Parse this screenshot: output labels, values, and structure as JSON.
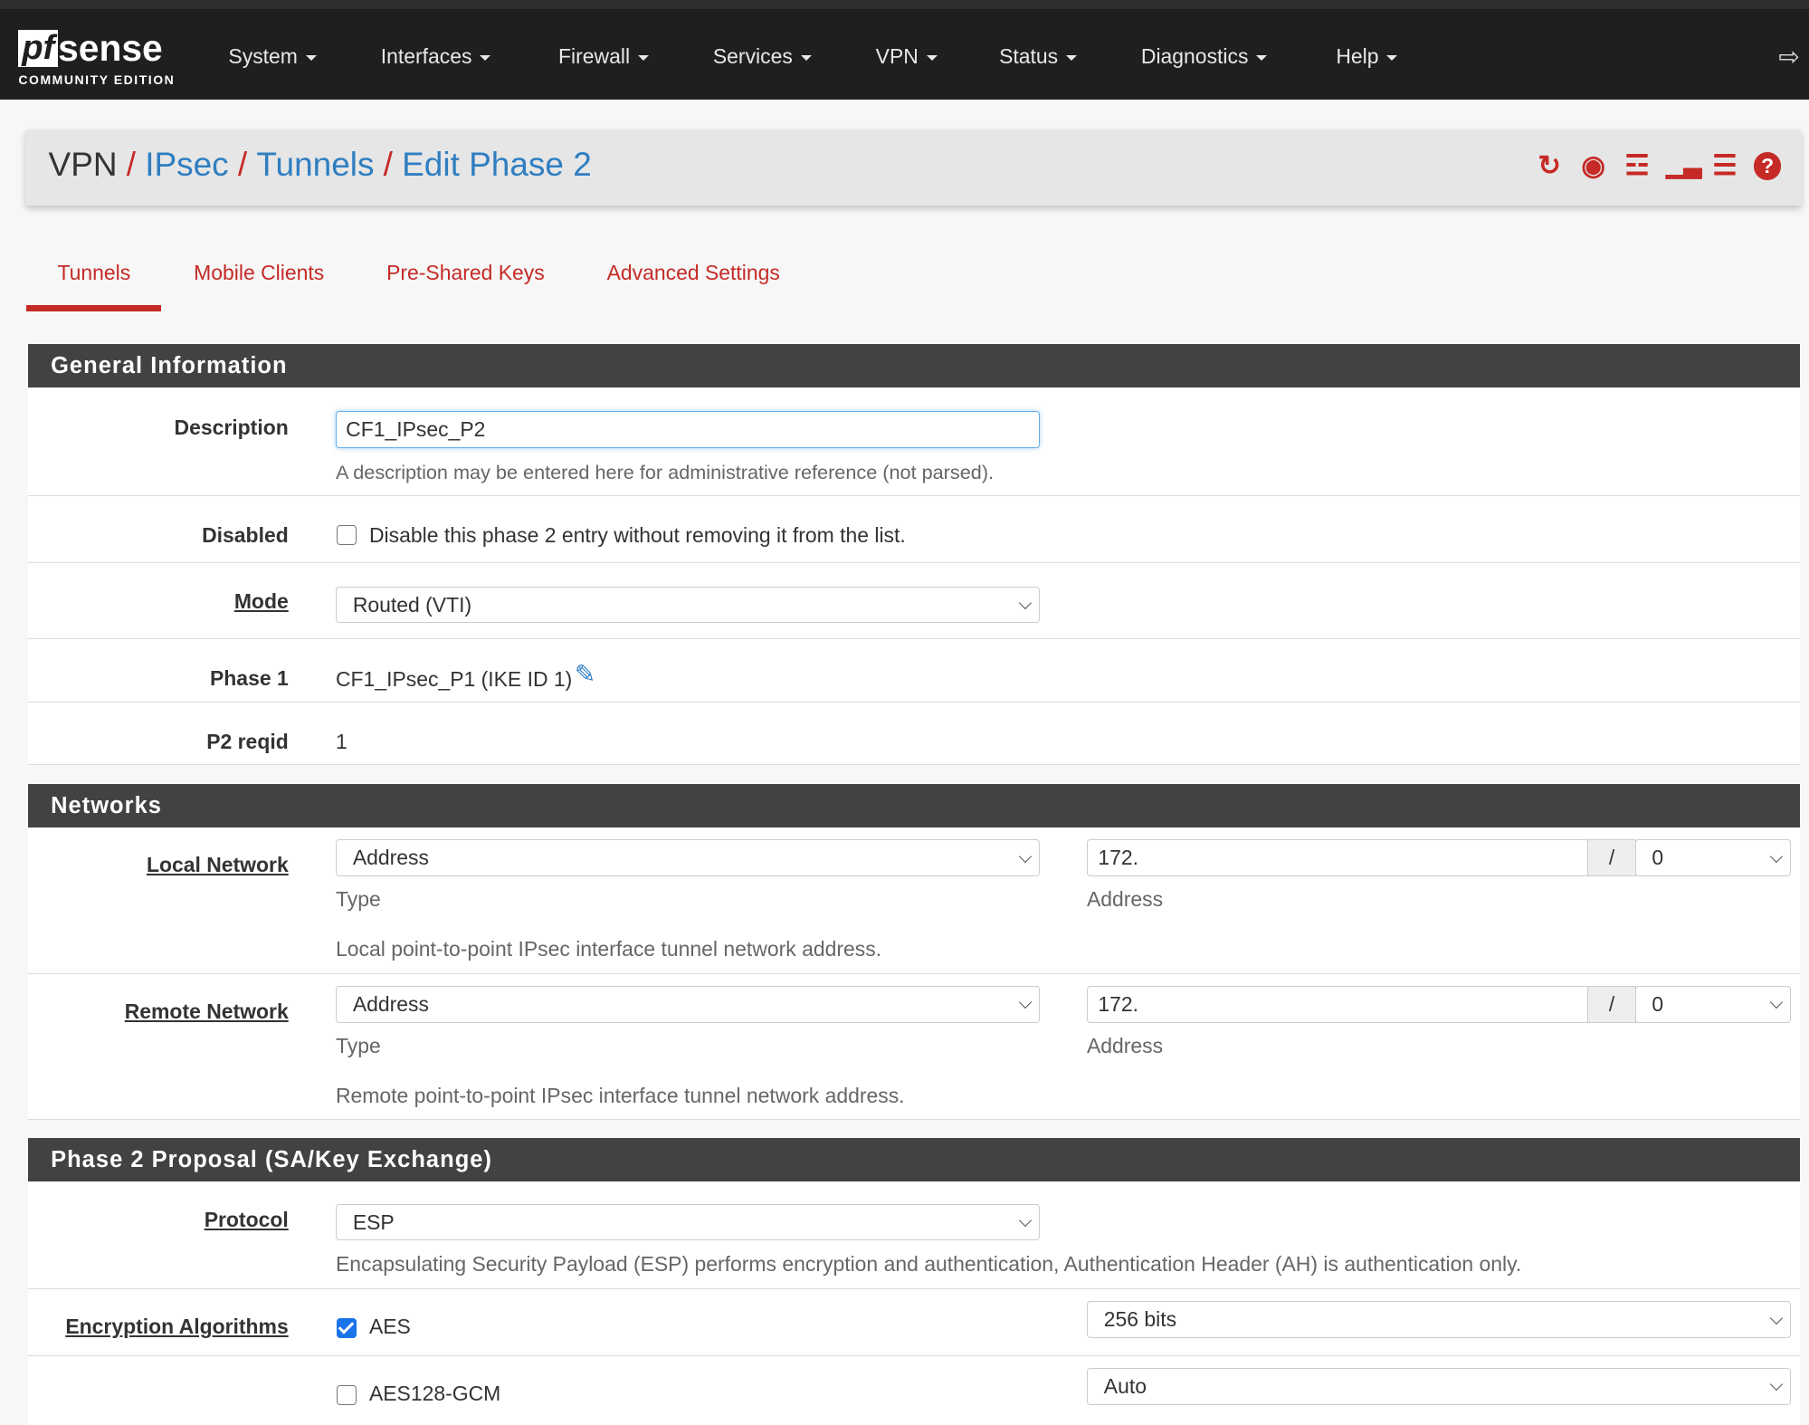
{
  "nav": {
    "logo": "pfsense",
    "edition": "COMMUNITY EDITION",
    "menus": [
      "System",
      "Interfaces",
      "Firewall",
      "Services",
      "VPN",
      "Status",
      "Diagnostics",
      "Help"
    ]
  },
  "breadcrumb": {
    "root": "VPN",
    "items": [
      "IPsec",
      "Tunnels",
      "Edit Phase 2"
    ]
  },
  "header_icons": [
    "reload-icon",
    "stop-icon",
    "sliders-icon",
    "chart-icon",
    "log-list-icon",
    "help-icon"
  ],
  "tabs": [
    "Tunnels",
    "Mobile Clients",
    "Pre-Shared Keys",
    "Advanced Settings"
  ],
  "general": {
    "title": "General Information",
    "description": {
      "label": "Description",
      "value": "CF1_IPsec_P2",
      "help": "A description may be entered here for administrative reference (not parsed)."
    },
    "disabled": {
      "label": "Disabled",
      "text": "Disable this phase 2 entry without removing it from the list.",
      "checked": false
    },
    "mode": {
      "label": "Mode",
      "value": "Routed (VTI)"
    },
    "phase1": {
      "label": "Phase 1",
      "value": "CF1_IPsec_P1 (IKE ID 1)"
    },
    "reqid": {
      "label": "P2 reqid",
      "value": "1"
    }
  },
  "networks": {
    "title": "Networks",
    "local": {
      "label": "Local Network",
      "type": "Address",
      "type_label": "Type",
      "address": "172.",
      "address_label": "Address",
      "slash": "/",
      "mask": "0",
      "help": "Local point-to-point IPsec interface tunnel network address."
    },
    "remote": {
      "label": "Remote Network",
      "type": "Address",
      "type_label": "Type",
      "address": "172.",
      "address_label": "Address",
      "slash": "/",
      "mask": "0",
      "help": "Remote point-to-point IPsec interface tunnel network address."
    }
  },
  "proposal": {
    "title": "Phase 2 Proposal (SA/Key Exchange)",
    "protocol": {
      "label": "Protocol",
      "value": "ESP",
      "help": "Encapsulating Security Payload (ESP) performs encryption and authentication, Authentication Header (AH) is authentication only."
    },
    "encryption": {
      "label": "Encryption Algorithms",
      "algs": [
        {
          "name": "AES",
          "checked": true,
          "keylen": "256 bits"
        },
        {
          "name": "AES128-GCM",
          "checked": false,
          "keylen": "Auto"
        }
      ]
    }
  },
  "colors": {
    "accent": "#c52a26",
    "link": "#2f7ec1",
    "navbar": "#1f1f1f",
    "panel_header": "#424242"
  }
}
